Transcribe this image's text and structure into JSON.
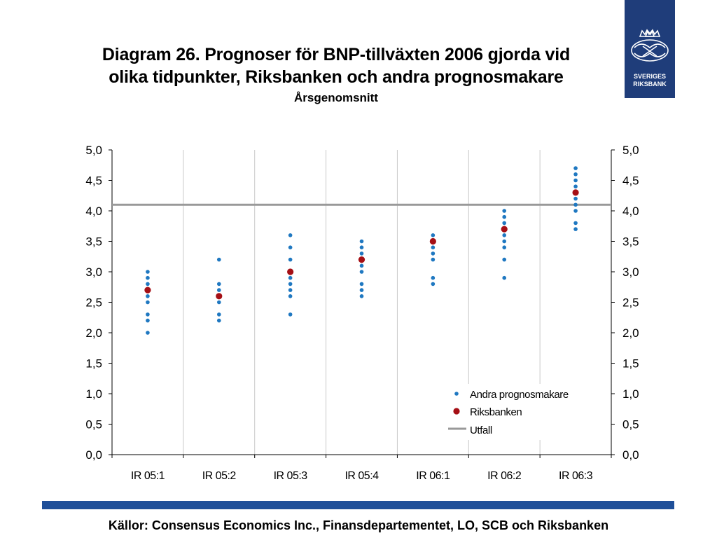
{
  "slide": {
    "title_line1": "Diagram 26. Prognoser för BNP-tillväxten 2006 gjorda vid",
    "title_line2": "olika tidpunkter, Riksbanken och andra prognosmakare",
    "subtitle": "Årsgenomsnitt",
    "logo_text_line1": "SVERIGES",
    "logo_text_line2": "RIKSBANK",
    "sources": "Källor: Consensus Economics Inc., Finansdepartementet, LO, SCB och Riksbanken"
  },
  "colors": {
    "logo_bg": "#1f3d7a",
    "footer_bar": "#1f4f99",
    "others": "#1f78c1",
    "riksbanken": "#a50f15",
    "utfall": "#999999"
  },
  "chart_data": {
    "type": "scatter",
    "categories": [
      "IR 05:1",
      "IR 05:2",
      "IR 05:3",
      "IR 05:4",
      "IR 06:1",
      "IR 06:2",
      "IR 06:3"
    ],
    "ylim": [
      0,
      5
    ],
    "yticks": [
      "0,0",
      "0,5",
      "1,0",
      "1,5",
      "2,0",
      "2,5",
      "3,0",
      "3,5",
      "4,0",
      "4,5",
      "5,0"
    ],
    "grid": true,
    "legend_position": "bottom-right",
    "series": [
      {
        "name": "Andra prognosmakare",
        "kind": "points",
        "values": [
          [
            3.0,
            2.9,
            2.8,
            2.7,
            2.6,
            2.5,
            2.3,
            2.2,
            2.0
          ],
          [
            3.2,
            2.8,
            2.7,
            2.6,
            2.5,
            2.3,
            2.2
          ],
          [
            3.6,
            3.4,
            3.2,
            3.0,
            2.9,
            2.8,
            2.7,
            2.6,
            2.3
          ],
          [
            3.5,
            3.4,
            3.3,
            3.2,
            3.1,
            3.0,
            2.8,
            2.7,
            2.6
          ],
          [
            3.6,
            3.5,
            3.4,
            3.3,
            3.2,
            2.9,
            2.8
          ],
          [
            4.0,
            3.9,
            3.8,
            3.7,
            3.6,
            3.5,
            3.4,
            3.2,
            2.9
          ],
          [
            4.7,
            4.6,
            4.5,
            4.4,
            4.3,
            4.2,
            4.1,
            4.0,
            3.8,
            3.7
          ]
        ]
      },
      {
        "name": "Riksbanken",
        "kind": "points",
        "values": [
          2.7,
          2.6,
          3.0,
          3.2,
          3.5,
          3.7,
          4.3
        ]
      },
      {
        "name": "Utfall",
        "kind": "line",
        "value": 4.1
      }
    ]
  }
}
